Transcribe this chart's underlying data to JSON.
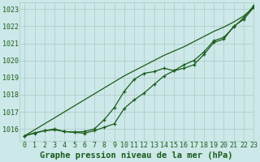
{
  "background_color": "#cce8e8",
  "grid_color": "#b0c8c8",
  "line_color": "#1a5c1a",
  "title": "Graphe pression niveau de la mer (hPa)",
  "xlim": [
    -0.5,
    23
  ],
  "ylim": [
    1015.3,
    1023.4
  ],
  "yticks": [
    1016,
    1017,
    1018,
    1019,
    1020,
    1021,
    1022,
    1023
  ],
  "xticks": [
    0,
    1,
    2,
    3,
    4,
    5,
    6,
    7,
    8,
    9,
    10,
    11,
    12,
    13,
    14,
    15,
    16,
    17,
    18,
    19,
    20,
    21,
    22,
    23
  ],
  "hours": [
    0,
    1,
    2,
    3,
    4,
    5,
    6,
    7,
    8,
    9,
    10,
    11,
    12,
    13,
    14,
    15,
    16,
    17,
    18,
    19,
    20,
    21,
    22,
    23
  ],
  "line_measured": [
    1015.6,
    1015.75,
    1015.9,
    1015.95,
    1015.85,
    1015.8,
    1015.75,
    1015.9,
    1016.1,
    1016.3,
    1017.2,
    1017.7,
    1018.1,
    1018.6,
    1019.1,
    1019.4,
    1019.75,
    1020.0,
    1020.5,
    1021.15,
    1021.35,
    1021.95,
    1022.5,
    1023.2
  ],
  "line_smooth": [
    1015.6,
    1015.78,
    1015.9,
    1016.0,
    1015.85,
    1015.82,
    1015.85,
    1016.0,
    1016.55,
    1017.25,
    1018.2,
    1018.9,
    1019.25,
    1019.35,
    1019.55,
    1019.4,
    1019.55,
    1019.75,
    1020.35,
    1021.05,
    1021.25,
    1022.0,
    1022.4,
    1023.1
  ],
  "line_trend": [
    1015.6,
    1015.95,
    1016.3,
    1016.65,
    1017.0,
    1017.35,
    1017.7,
    1018.05,
    1018.4,
    1018.75,
    1019.1,
    1019.4,
    1019.7,
    1020.0,
    1020.3,
    1020.55,
    1020.8,
    1021.1,
    1021.4,
    1021.7,
    1021.95,
    1022.25,
    1022.6,
    1023.1
  ],
  "title_fontsize": 7.5,
  "tick_fontsize": 6
}
